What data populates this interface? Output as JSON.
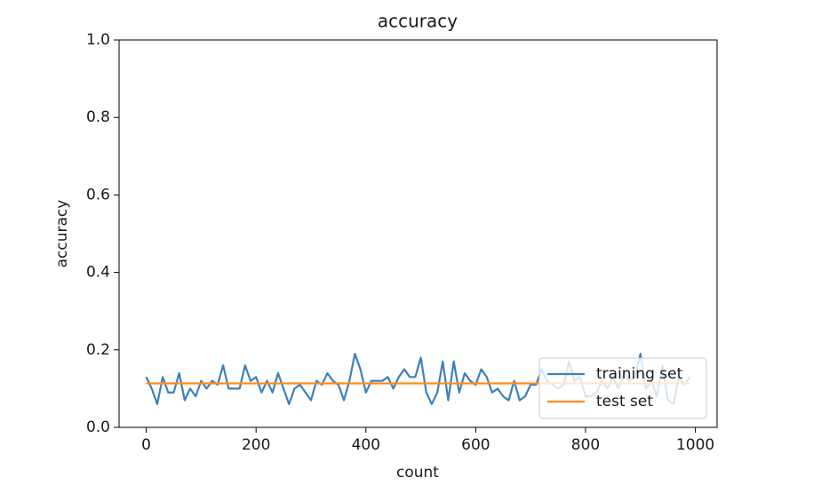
{
  "chart_data": {
    "type": "line",
    "title": "accuracy",
    "x_label": "count",
    "y_label": "accuracy",
    "x": [
      0,
      10,
      20,
      30,
      40,
      50,
      60,
      70,
      80,
      90,
      100,
      110,
      120,
      130,
      140,
      150,
      160,
      170,
      180,
      190,
      200,
      210,
      220,
      230,
      240,
      250,
      260,
      270,
      280,
      290,
      300,
      310,
      320,
      330,
      340,
      350,
      360,
      370,
      380,
      390,
      400,
      410,
      420,
      430,
      440,
      450,
      460,
      470,
      480,
      490,
      500,
      510,
      520,
      530,
      540,
      550,
      560,
      570,
      580,
      590,
      600,
      610,
      620,
      630,
      640,
      650,
      660,
      670,
      680,
      690,
      700,
      710,
      720,
      730,
      740,
      750,
      760,
      770,
      780,
      790,
      800,
      810,
      820,
      830,
      840,
      850,
      860,
      870,
      880,
      890,
      900,
      910,
      920,
      930,
      940,
      950,
      960,
      970,
      980,
      990
    ],
    "series": [
      {
        "name": "training set",
        "color": "#3b81bb",
        "values": [
          0.13,
          0.1,
          0.06,
          0.13,
          0.09,
          0.09,
          0.14,
          0.07,
          0.1,
          0.08,
          0.12,
          0.1,
          0.12,
          0.11,
          0.16,
          0.1,
          0.1,
          0.1,
          0.16,
          0.12,
          0.13,
          0.09,
          0.12,
          0.09,
          0.14,
          0.1,
          0.06,
          0.1,
          0.11,
          0.09,
          0.07,
          0.12,
          0.11,
          0.14,
          0.12,
          0.11,
          0.07,
          0.12,
          0.19,
          0.15,
          0.09,
          0.12,
          0.12,
          0.12,
          0.13,
          0.1,
          0.13,
          0.15,
          0.13,
          0.13,
          0.18,
          0.09,
          0.06,
          0.09,
          0.17,
          0.07,
          0.17,
          0.09,
          0.14,
          0.12,
          0.11,
          0.15,
          0.13,
          0.09,
          0.1,
          0.08,
          0.07,
          0.12,
          0.07,
          0.08,
          0.11,
          0.11,
          0.15,
          0.12,
          0.11,
          0.1,
          0.11,
          0.17,
          0.12,
          0.13,
          0.08,
          0.08,
          0.09,
          0.12,
          0.1,
          0.13,
          0.1,
          0.14,
          0.12,
          0.13,
          0.19,
          0.1,
          0.12,
          0.08,
          0.16,
          0.07,
          0.06,
          0.13,
          0.11,
          0.13
        ]
      },
      {
        "name": "test set",
        "color": "#ff8c1a",
        "values": [
          0.1135,
          0.1135,
          0.1135,
          0.1135,
          0.1135,
          0.1135,
          0.1135,
          0.1135,
          0.1135,
          0.1135,
          0.1135,
          0.1135,
          0.1135,
          0.1135,
          0.1135,
          0.1135,
          0.1135,
          0.1135,
          0.1135,
          0.1135,
          0.1135,
          0.1135,
          0.1135,
          0.1135,
          0.1135,
          0.1135,
          0.1135,
          0.1135,
          0.1135,
          0.1135,
          0.1135,
          0.1135,
          0.1135,
          0.1135,
          0.1135,
          0.1135,
          0.1135,
          0.1135,
          0.1135,
          0.1135,
          0.1135,
          0.1135,
          0.1135,
          0.1135,
          0.1135,
          0.1135,
          0.1135,
          0.1135,
          0.1135,
          0.1135,
          0.1135,
          0.1135,
          0.1135,
          0.1135,
          0.1135,
          0.1135,
          0.1135,
          0.1135,
          0.1135,
          0.1135,
          0.1135,
          0.1135,
          0.1135,
          0.1135,
          0.1135,
          0.1135,
          0.1135,
          0.1135,
          0.1135,
          0.1135,
          0.1135,
          0.1135,
          0.1135,
          0.1135,
          0.1135,
          0.1135,
          0.1135,
          0.1135,
          0.1135,
          0.1135,
          0.1135,
          0.1135,
          0.1135,
          0.1135,
          0.1135,
          0.1135,
          0.1135,
          0.1135,
          0.1135,
          0.1135,
          0.1135,
          0.1135,
          0.1135,
          0.1135,
          0.1135,
          0.1135,
          0.1135,
          0.1135,
          0.1135,
          0.1135
        ]
      }
    ],
    "xlim": [
      -49.5,
      1039.5
    ],
    "xticks": [
      0,
      200,
      400,
      600,
      800,
      1000
    ],
    "ylim": [
      0,
      1
    ],
    "yticks": [
      {
        "value": 0,
        "label": "0.0"
      },
      0.2,
      0.4,
      0.6,
      0.8,
      {
        "value": 1,
        "label": "1.0"
      }
    ],
    "legend": "lower right"
  }
}
